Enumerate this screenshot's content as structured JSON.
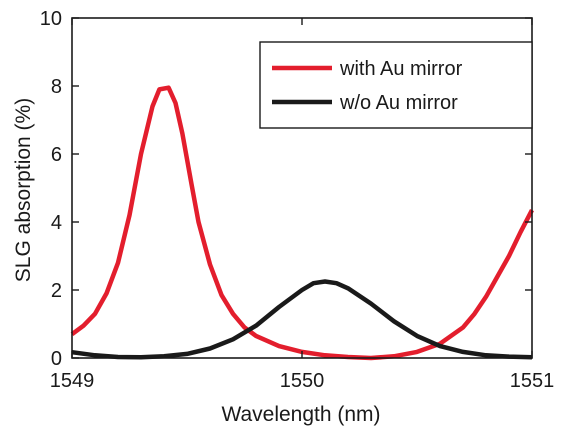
{
  "chart_data": {
    "type": "line",
    "xlabel": "Wavelength (nm)",
    "ylabel": "SLG absorption (%)",
    "xlim": [
      1549,
      1551
    ],
    "ylim": [
      0,
      10
    ],
    "x_ticks": [
      1549,
      1550,
      1551
    ],
    "y_ticks": [
      0,
      2,
      4,
      6,
      8,
      10
    ],
    "grid": false,
    "legend_position": "top-right",
    "series": [
      {
        "name": "with Au mirror",
        "color": "#e31e2d",
        "x": [
          1549.0,
          1549.05,
          1549.1,
          1549.15,
          1549.2,
          1549.25,
          1549.3,
          1549.35,
          1549.38,
          1549.42,
          1549.45,
          1549.48,
          1549.52,
          1549.55,
          1549.6,
          1549.65,
          1549.7,
          1549.75,
          1549.8,
          1549.9,
          1550.0,
          1550.1,
          1550.2,
          1550.3,
          1550.4,
          1550.5,
          1550.6,
          1550.7,
          1550.75,
          1550.8,
          1550.85,
          1550.9,
          1550.95,
          1551.0
        ],
        "y": [
          0.7,
          0.95,
          1.3,
          1.9,
          2.8,
          4.2,
          6.0,
          7.4,
          7.9,
          7.95,
          7.5,
          6.6,
          5.1,
          4.0,
          2.75,
          1.85,
          1.3,
          0.9,
          0.65,
          0.35,
          0.18,
          0.08,
          0.03,
          0.0,
          0.05,
          0.18,
          0.42,
          0.9,
          1.3,
          1.8,
          2.4,
          3.0,
          3.7,
          4.35
        ]
      },
      {
        "name": "w/o Au mirror",
        "color": "#1a1a1a",
        "x": [
          1549.0,
          1549.1,
          1549.2,
          1549.3,
          1549.4,
          1549.5,
          1549.6,
          1549.7,
          1549.8,
          1549.9,
          1550.0,
          1550.05,
          1550.1,
          1550.15,
          1550.2,
          1550.3,
          1550.4,
          1550.5,
          1550.6,
          1550.7,
          1550.8,
          1550.9,
          1551.0
        ],
        "y": [
          0.17,
          0.08,
          0.03,
          0.02,
          0.05,
          0.12,
          0.28,
          0.55,
          0.95,
          1.5,
          2.0,
          2.2,
          2.25,
          2.2,
          2.05,
          1.6,
          1.08,
          0.65,
          0.35,
          0.18,
          0.08,
          0.04,
          0.02
        ]
      }
    ]
  }
}
